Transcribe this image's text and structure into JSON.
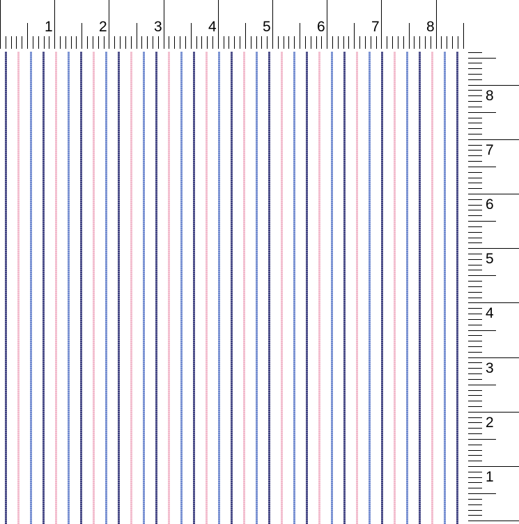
{
  "top_ruler": {
    "labels": [
      "1",
      "2",
      "3",
      "4",
      "5",
      "6",
      "7",
      "8"
    ]
  },
  "right_ruler": {
    "labels": [
      "1",
      "2",
      "3",
      "4",
      "5",
      "6",
      "7",
      "8"
    ]
  },
  "fabric": {
    "pattern": "vertical-pinstripe",
    "stripe_colors": [
      "#3e4080",
      "#f2b9cb",
      "#6f89cf"
    ],
    "stripe_count": 37
  }
}
